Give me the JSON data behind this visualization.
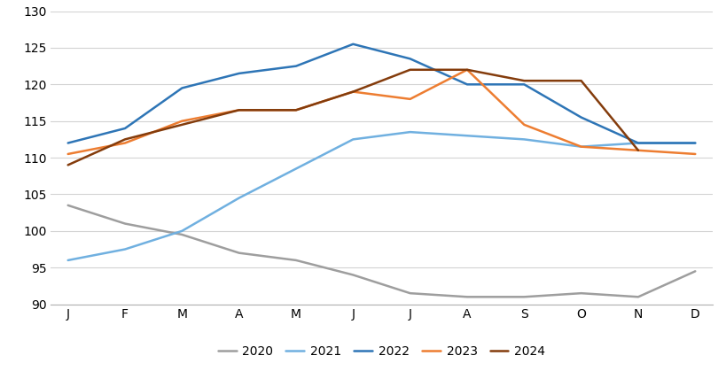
{
  "months": [
    "J",
    "F",
    "M",
    "A",
    "M",
    "J",
    "J",
    "A",
    "S",
    "O",
    "N",
    "D"
  ],
  "series": {
    "2020": [
      103.5,
      101.0,
      99.5,
      97.0,
      96.0,
      94.0,
      91.5,
      91.0,
      91.0,
      91.5,
      91.0,
      94.5
    ],
    "2021": [
      96.0,
      97.5,
      100.0,
      104.5,
      108.5,
      112.5,
      113.5,
      113.0,
      112.5,
      111.5,
      112.0,
      112.0
    ],
    "2022": [
      112.0,
      114.0,
      119.5,
      121.5,
      122.5,
      125.5,
      123.5,
      120.0,
      120.0,
      115.5,
      112.0,
      112.0
    ],
    "2023": [
      110.5,
      112.0,
      115.0,
      116.5,
      116.5,
      119.0,
      118.0,
      122.0,
      114.5,
      111.5,
      111.0,
      110.5
    ],
    "2024": [
      109.0,
      112.5,
      114.5,
      116.5,
      116.5,
      119.0,
      122.0,
      122.0,
      120.5,
      120.5,
      111.0,
      null
    ]
  },
  "colors": {
    "2020": "#9E9E9E",
    "2021": "#70B0E0",
    "2022": "#2E75B6",
    "2023": "#ED7D31",
    "2024": "#843C0C"
  },
  "ylim": [
    90,
    130
  ],
  "yticks": [
    90,
    95,
    100,
    105,
    110,
    115,
    120,
    125,
    130
  ],
  "background_color": "#ffffff",
  "grid_color": "#d3d3d3",
  "linewidth": 1.8,
  "legend_order": [
    "2020",
    "2021",
    "2022",
    "2023",
    "2024"
  ]
}
